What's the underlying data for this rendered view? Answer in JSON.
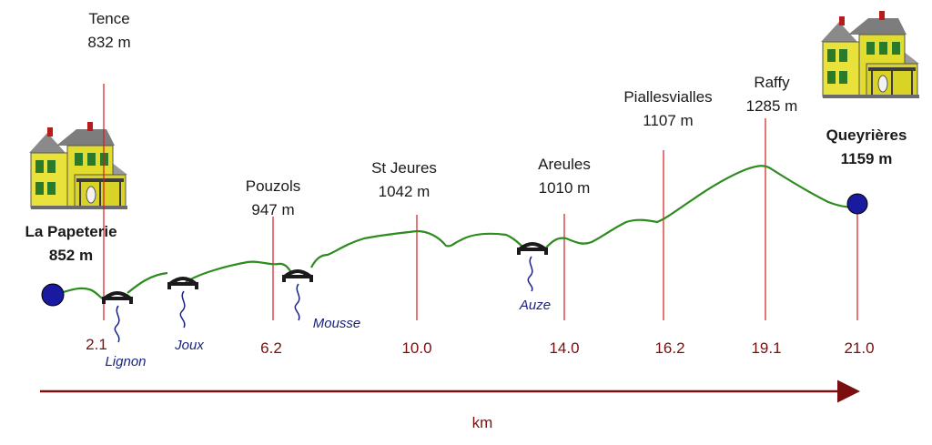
{
  "start": {
    "name": "La Papeterie",
    "elevation": "852 m"
  },
  "end": {
    "name": "Queyrières",
    "elevation": "1159 m"
  },
  "places": [
    {
      "name": "Tence",
      "elevation": "832 m",
      "km": "2.1"
    },
    {
      "name": "Pouzols",
      "elevation": "947 m",
      "km": "6.2"
    },
    {
      "name": "St Jeures",
      "elevation": "1042 m",
      "km": "10.0"
    },
    {
      "name": "Areules",
      "elevation": "1010 m",
      "km": "14.0"
    },
    {
      "name": "Piallesvialles",
      "elevation": "1107 m",
      "km": "16.2"
    },
    {
      "name": "Raffy",
      "elevation": "1285 m",
      "km": "19.1"
    },
    {
      "name": "Queyrières",
      "elevation": "1159 m",
      "km": "21.0"
    }
  ],
  "rivers": [
    "Lignon",
    "Joux",
    "Mousse",
    "Auze"
  ],
  "axis": {
    "label": "km"
  },
  "colors": {
    "profile": "#2e8b1f",
    "markers": "#d81b1b",
    "axis": "#7a0f0f",
    "river": "#1a237e",
    "endpoint": "#1a1aa0"
  },
  "icons": [
    "house-icon",
    "bridge-icon"
  ]
}
